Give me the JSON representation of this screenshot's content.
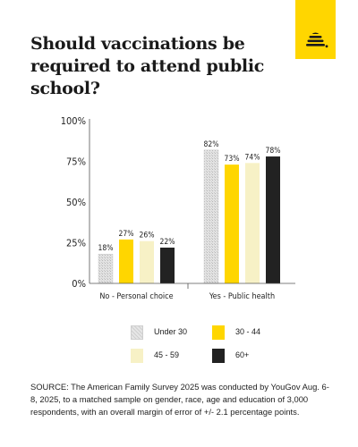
{
  "chart_data": {
    "type": "bar",
    "title": "Should vaccinations be required to attend public school?",
    "categories": [
      "No - Personal choice",
      "Yes - Public health"
    ],
    "series": [
      {
        "name": "Under 30",
        "values": [
          18,
          82
        ],
        "color": "#d9d9d9",
        "pattern": "hatched"
      },
      {
        "name": "30 - 44",
        "values": [
          27,
          73
        ],
        "color": "#ffd600"
      },
      {
        "name": "45 - 59",
        "values": [
          26,
          74
        ],
        "color": "#f7f1c6"
      },
      {
        "name": "60+",
        "values": [
          22,
          78
        ],
        "color": "#222222"
      }
    ],
    "ylim": [
      0,
      100
    ],
    "yticks": [
      "0%",
      "25%",
      "50%",
      "75%",
      "100%"
    ],
    "ytick_values": [
      0,
      25,
      50,
      75,
      100
    ],
    "value_suffix": "%",
    "grid": false,
    "legend_position": "bottom"
  },
  "logo": {
    "icon": "beehive-icon",
    "background": "#ffd600"
  },
  "source_text": "SOURCE: The American Family Survey 2025 was conducted by YouGov Aug. 6-8, 2025, to a matched sample on gender, race, age and education of 3,000 respondents, with an overall margin of error of +/- 2.1 percentage points."
}
